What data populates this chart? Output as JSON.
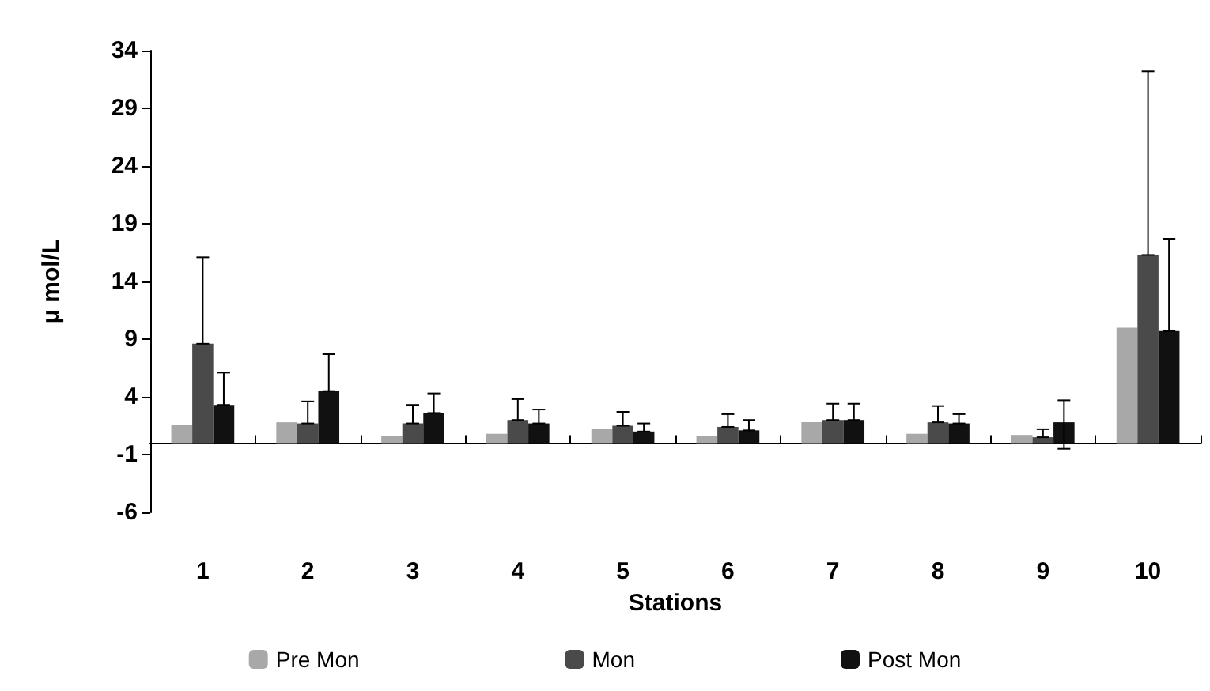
{
  "chart_data": {
    "type": "bar",
    "xlabel": "Stations",
    "ylabel": "μ mol/L",
    "categories": [
      "1",
      "2",
      "3",
      "4",
      "5",
      "6",
      "7",
      "8",
      "9",
      "10"
    ],
    "ylim": [
      -6,
      34
    ],
    "yticks": [
      -6,
      -1,
      4,
      9,
      14,
      19,
      24,
      29,
      34
    ],
    "grid": false,
    "legend": "bottom",
    "series": [
      {
        "name": "Pre Mon",
        "color": "#a8a8a8",
        "values": [
          1.6,
          1.8,
          0.6,
          0.8,
          1.2,
          0.6,
          1.8,
          0.8,
          0.7,
          10.0
        ]
      },
      {
        "name": "Mon",
        "color": "#4a4a4a",
        "values": [
          8.6,
          1.7,
          1.7,
          2.0,
          1.5,
          1.4,
          2.0,
          1.8,
          0.5,
          16.3
        ],
        "errors": [
          [
            8.6,
            16.1
          ],
          [
            1.7,
            3.6
          ],
          [
            1.7,
            3.3
          ],
          [
            2.0,
            3.8
          ],
          [
            1.5,
            2.7
          ],
          [
            1.4,
            2.5
          ],
          [
            2.0,
            3.4
          ],
          [
            1.8,
            3.2
          ],
          [
            0.5,
            1.2
          ],
          [
            16.3,
            32.2
          ]
        ]
      },
      {
        "name": "Post Mon",
        "color": "#111111",
        "values": [
          3.3,
          4.5,
          2.6,
          1.7,
          1.0,
          1.1,
          2.0,
          1.7,
          1.8,
          9.7
        ],
        "errors": [
          [
            3.3,
            6.1
          ],
          [
            4.5,
            7.7
          ],
          [
            2.6,
            4.3
          ],
          [
            1.7,
            2.9
          ],
          [
            1.0,
            1.7
          ],
          [
            1.1,
            2.0
          ],
          [
            2.0,
            3.4
          ],
          [
            1.7,
            2.5
          ],
          [
            -0.5,
            3.7
          ],
          [
            9.7,
            17.7
          ]
        ]
      }
    ]
  }
}
